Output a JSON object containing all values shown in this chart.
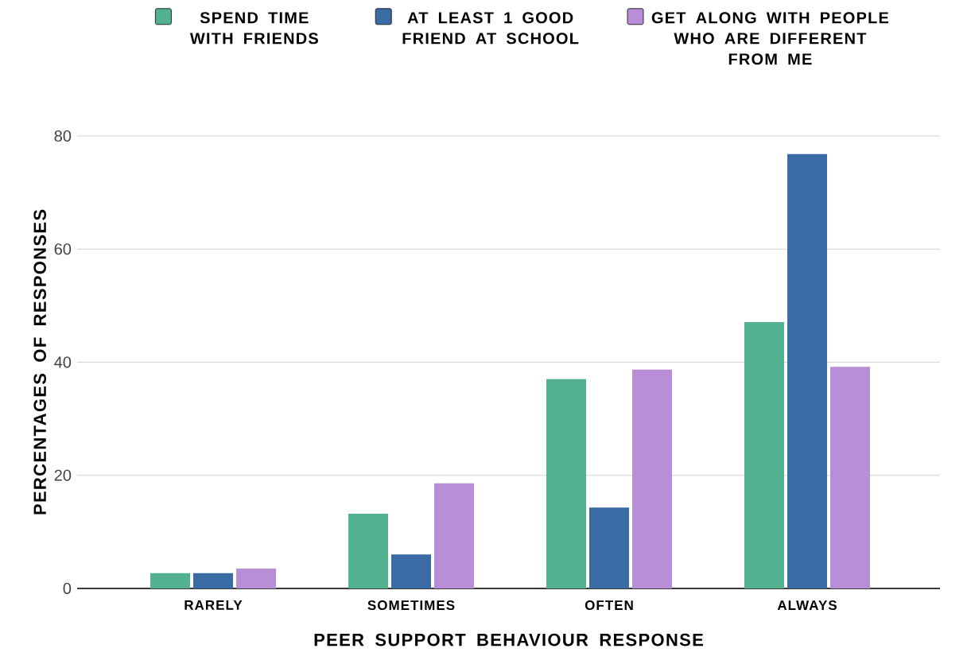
{
  "chart_data": {
    "type": "bar",
    "xlabel": "PEER SUPPORT BEHAVIOUR RESPONSE",
    "ylabel": "PERCENTAGES OF RESPONSES",
    "categories": [
      "RARELY",
      "SOMETIMES",
      "OFTEN",
      "ALWAYS"
    ],
    "series": [
      {
        "name": "SPEND TIME WITH FRIENDS",
        "color": "#52b18f",
        "values": [
          2.7,
          13.2,
          37.0,
          47.1
        ]
      },
      {
        "name": "AT LEAST 1 GOOD FRIEND AT SCHOOL",
        "color": "#3b6ba5",
        "values": [
          2.7,
          6.0,
          14.3,
          76.8
        ]
      },
      {
        "name": "GET ALONG WITH PEOPLE WHO ARE DIFFERENT FROM ME",
        "color": "#b88fd6",
        "values": [
          3.5,
          18.6,
          38.7,
          39.2
        ]
      }
    ],
    "ylim": [
      0,
      80
    ],
    "yticks": [
      0,
      20,
      40,
      60,
      80
    ],
    "grid": "y",
    "legend": "top"
  }
}
